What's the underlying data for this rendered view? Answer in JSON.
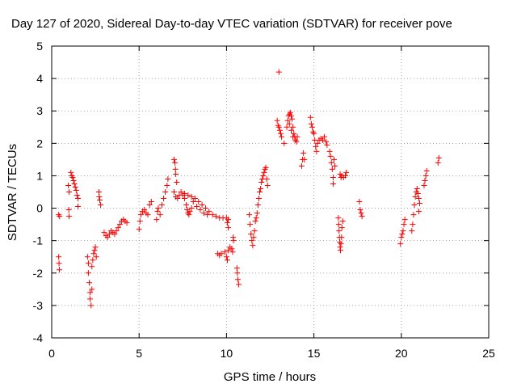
{
  "chart_data": {
    "type": "scatter",
    "title": "Day 127 of 2020, Sidereal Day-to-day VTEC variation (SDTVAR) for receiver pove",
    "xlabel": "GPS time / hours",
    "ylabel": "SDTVAR / TECUs",
    "xlim": [
      0,
      25
    ],
    "ylim": [
      -4,
      5
    ],
    "xticks": [
      0,
      5,
      10,
      15,
      20,
      25
    ],
    "yticks": [
      -4,
      -3,
      -2,
      -1,
      0,
      1,
      2,
      3,
      4,
      5
    ],
    "grid": true,
    "marker": "+",
    "color": "#ff0000",
    "series": [
      {
        "name": "SDTVAR",
        "points": [
          [
            0.4,
            -0.2
          ],
          [
            0.45,
            -0.25
          ],
          [
            0.4,
            -1.5
          ],
          [
            0.42,
            -1.7
          ],
          [
            0.44,
            -1.9
          ],
          [
            0.95,
            0.7
          ],
          [
            1.0,
            0.5
          ],
          [
            0.98,
            -0.05
          ],
          [
            1.0,
            -0.25
          ],
          [
            1.1,
            1.1
          ],
          [
            1.15,
            1.0
          ],
          [
            1.2,
            0.95
          ],
          [
            1.25,
            0.85
          ],
          [
            1.3,
            0.75
          ],
          [
            1.35,
            0.65
          ],
          [
            1.4,
            0.55
          ],
          [
            1.45,
            0.4
          ],
          [
            1.5,
            0.3
          ],
          [
            1.5,
            0.05
          ],
          [
            2.05,
            -1.5
          ],
          [
            2.1,
            -1.7
          ],
          [
            2.1,
            -2.0
          ],
          [
            2.15,
            -2.3
          ],
          [
            2.2,
            -2.6
          ],
          [
            2.2,
            -2.8
          ],
          [
            2.25,
            -3.0
          ],
          [
            2.3,
            -2.5
          ],
          [
            2.3,
            -1.8
          ],
          [
            2.35,
            -1.6
          ],
          [
            2.4,
            -1.4
          ],
          [
            2.45,
            -1.3
          ],
          [
            2.5,
            -1.2
          ],
          [
            2.55,
            -1.5
          ],
          [
            2.7,
            0.5
          ],
          [
            2.72,
            0.35
          ],
          [
            2.75,
            0.25
          ],
          [
            2.8,
            0.1
          ],
          [
            3.0,
            -0.75
          ],
          [
            3.1,
            -0.85
          ],
          [
            3.2,
            -0.9
          ],
          [
            3.3,
            -0.8
          ],
          [
            3.4,
            -0.7
          ],
          [
            3.5,
            -0.75
          ],
          [
            3.6,
            -0.8
          ],
          [
            3.7,
            -0.7
          ],
          [
            3.8,
            -0.6
          ],
          [
            3.9,
            -0.5
          ],
          [
            4.0,
            -0.4
          ],
          [
            4.1,
            -0.35
          ],
          [
            4.2,
            -0.4
          ],
          [
            4.3,
            -0.45
          ],
          [
            5.0,
            -0.65
          ],
          [
            5.05,
            -0.4
          ],
          [
            5.1,
            -0.2
          ],
          [
            5.2,
            -0.1
          ],
          [
            5.3,
            -0.05
          ],
          [
            5.4,
            -0.15
          ],
          [
            5.5,
            -0.2
          ],
          [
            5.6,
            0.1
          ],
          [
            5.7,
            0.2
          ],
          [
            6.0,
            -0.35
          ],
          [
            6.05,
            -0.1
          ],
          [
            6.1,
            0.0
          ],
          [
            6.2,
            -0.2
          ],
          [
            6.3,
            0.1
          ],
          [
            6.4,
            0.3
          ],
          [
            6.5,
            0.5
          ],
          [
            6.6,
            0.7
          ],
          [
            6.65,
            0.9
          ],
          [
            7.0,
            1.5
          ],
          [
            7.05,
            1.4
          ],
          [
            7.08,
            1.2
          ],
          [
            7.1,
            1.05
          ],
          [
            7.15,
            0.8
          ],
          [
            7.0,
            0.5
          ],
          [
            7.1,
            0.35
          ],
          [
            7.2,
            0.3
          ],
          [
            7.3,
            0.4
          ],
          [
            7.4,
            0.5
          ],
          [
            7.5,
            0.4
          ],
          [
            7.6,
            0.3
          ],
          [
            7.7,
            0.1
          ],
          [
            7.75,
            -0.05
          ],
          [
            7.8,
            -0.15
          ],
          [
            7.85,
            -0.2
          ],
          [
            7.9,
            -0.1
          ],
          [
            8.0,
            0.0
          ],
          [
            7.6,
            0.45
          ],
          [
            7.8,
            0.4
          ],
          [
            8.0,
            0.35
          ],
          [
            8.2,
            0.3
          ],
          [
            8.4,
            0.2
          ],
          [
            8.6,
            0.1
          ],
          [
            8.8,
            0.0
          ],
          [
            9.0,
            -0.1
          ],
          [
            9.2,
            -0.2
          ],
          [
            9.4,
            -0.25
          ],
          [
            9.6,
            -0.3
          ],
          [
            9.8,
            -0.3
          ],
          [
            8.1,
            0.2
          ],
          [
            8.3,
            0.05
          ],
          [
            8.5,
            -0.05
          ],
          [
            8.7,
            -0.15
          ],
          [
            8.9,
            -0.2
          ],
          [
            10.0,
            -0.3
          ],
          [
            10.05,
            -0.45
          ],
          [
            10.1,
            -0.6
          ],
          [
            10.1,
            -0.35
          ],
          [
            9.5,
            -1.4
          ],
          [
            9.6,
            -1.45
          ],
          [
            9.7,
            -1.4
          ],
          [
            9.9,
            -1.35
          ],
          [
            10.0,
            -1.5
          ],
          [
            10.05,
            -1.6
          ],
          [
            10.1,
            -1.3
          ],
          [
            10.2,
            -1.2
          ],
          [
            10.3,
            -1.25
          ],
          [
            10.35,
            -1.35
          ],
          [
            10.4,
            -1.0
          ],
          [
            10.38,
            -0.9
          ],
          [
            10.6,
            -1.85
          ],
          [
            10.62,
            -2.0
          ],
          [
            10.65,
            -2.2
          ],
          [
            10.7,
            -2.35
          ],
          [
            11.3,
            -0.2
          ],
          [
            11.35,
            -0.5
          ],
          [
            11.4,
            -0.8
          ],
          [
            11.45,
            -1.0
          ],
          [
            11.5,
            -1.15
          ],
          [
            11.55,
            -0.9
          ],
          [
            11.6,
            -0.7
          ],
          [
            11.65,
            -0.4
          ],
          [
            11.7,
            -0.3
          ],
          [
            11.75,
            -0.15
          ],
          [
            11.8,
            0.1
          ],
          [
            11.85,
            0.3
          ],
          [
            11.9,
            0.5
          ],
          [
            11.95,
            0.6
          ],
          [
            12.0,
            0.8
          ],
          [
            12.05,
            0.9
          ],
          [
            12.1,
            1.0
          ],
          [
            12.15,
            1.1
          ],
          [
            12.2,
            1.2
          ],
          [
            12.25,
            1.25
          ],
          [
            12.3,
            0.9
          ],
          [
            12.35,
            0.7
          ],
          [
            13.0,
            4.2
          ],
          [
            12.9,
            2.7
          ],
          [
            12.95,
            2.55
          ],
          [
            13.0,
            2.5
          ],
          [
            13.05,
            2.4
          ],
          [
            13.1,
            2.3
          ],
          [
            13.15,
            2.2
          ],
          [
            13.3,
            2.0
          ],
          [
            13.45,
            2.5
          ],
          [
            13.5,
            2.7
          ],
          [
            13.55,
            2.85
          ],
          [
            13.6,
            2.9
          ],
          [
            13.65,
            2.95
          ],
          [
            13.7,
            2.85
          ],
          [
            13.75,
            2.75
          ],
          [
            13.8,
            2.5
          ],
          [
            13.85,
            2.3
          ],
          [
            13.9,
            2.2
          ],
          [
            13.95,
            2.1
          ],
          [
            14.0,
            2.05
          ],
          [
            14.05,
            2.2
          ],
          [
            13.6,
            2.6
          ],
          [
            13.7,
            2.4
          ],
          [
            13.8,
            2.2
          ],
          [
            14.3,
            1.3
          ],
          [
            14.35,
            1.5
          ],
          [
            14.4,
            1.7
          ],
          [
            14.45,
            1.5
          ],
          [
            14.8,
            2.8
          ],
          [
            14.85,
            2.6
          ],
          [
            14.9,
            2.5
          ],
          [
            14.95,
            2.35
          ],
          [
            15.0,
            2.3
          ],
          [
            15.05,
            2.1
          ],
          [
            15.1,
            1.9
          ],
          [
            15.15,
            1.75
          ],
          [
            15.2,
            2.0
          ],
          [
            15.3,
            2.1
          ],
          [
            15.4,
            2.15
          ],
          [
            15.5,
            2.1
          ],
          [
            15.6,
            2.2
          ],
          [
            15.7,
            2.05
          ],
          [
            15.75,
            1.95
          ],
          [
            15.9,
            1.75
          ],
          [
            15.95,
            1.6
          ],
          [
            16.0,
            1.4
          ],
          [
            16.05,
            1.2
          ],
          [
            16.1,
            0.95
          ],
          [
            16.1,
            0.75
          ],
          [
            16.15,
            1.5
          ],
          [
            16.2,
            1.3
          ],
          [
            16.4,
            -0.3
          ],
          [
            16.42,
            -0.5
          ],
          [
            16.44,
            -0.7
          ],
          [
            16.46,
            -0.9
          ],
          [
            16.48,
            -1.05
          ],
          [
            16.5,
            -1.2
          ],
          [
            16.52,
            -1.3
          ],
          [
            16.55,
            -1.1
          ],
          [
            16.58,
            -0.9
          ],
          [
            16.6,
            -0.6
          ],
          [
            16.65,
            -0.4
          ],
          [
            16.5,
            1.05
          ],
          [
            16.55,
            0.95
          ],
          [
            16.6,
            1.0
          ],
          [
            16.7,
            0.95
          ],
          [
            16.8,
            1.0
          ],
          [
            16.85,
            1.1
          ],
          [
            17.6,
            0.2
          ],
          [
            17.65,
            -0.05
          ],
          [
            17.7,
            -0.15
          ],
          [
            17.75,
            -0.25
          ],
          [
            19.95,
            -1.1
          ],
          [
            20.0,
            -0.9
          ],
          [
            20.05,
            -0.8
          ],
          [
            20.1,
            -0.7
          ],
          [
            20.15,
            -0.5
          ],
          [
            20.2,
            -0.35
          ],
          [
            20.6,
            -0.7
          ],
          [
            20.65,
            -0.5
          ],
          [
            20.7,
            -0.2
          ],
          [
            20.75,
            0.1
          ],
          [
            20.8,
            0.35
          ],
          [
            20.85,
            0.5
          ],
          [
            20.9,
            0.6
          ],
          [
            20.95,
            0.45
          ],
          [
            21.0,
            0.3
          ],
          [
            21.05,
            0.15
          ],
          [
            21.0,
            -0.1
          ],
          [
            21.3,
            0.7
          ],
          [
            21.35,
            0.85
          ],
          [
            21.4,
            1.0
          ],
          [
            21.45,
            1.15
          ],
          [
            22.1,
            1.4
          ],
          [
            22.15,
            1.55
          ]
        ]
      }
    ]
  }
}
